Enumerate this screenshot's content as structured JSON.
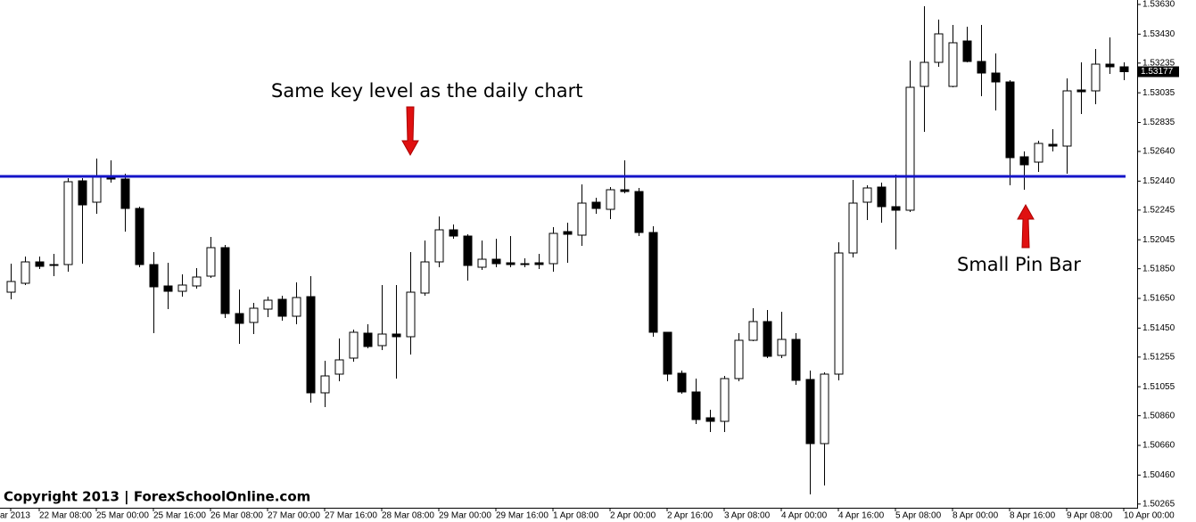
{
  "chart_data": {
    "type": "candlestick",
    "categories": [
      "ar 2013",
      null,
      "22 Mar 08:00",
      null,
      null,
      null,
      "25 Mar 00:00",
      null,
      null,
      null,
      "25 Mar 16:00",
      null,
      null,
      null,
      "26 Mar 08:00",
      null,
      null,
      null,
      "27 Mar 00:00",
      null,
      null,
      null,
      "27 Mar 16:00",
      null,
      null,
      null,
      "28 Mar 08:00",
      null,
      null,
      null,
      "29 Mar 00:00",
      null,
      null,
      null,
      "29 Mar 16:00",
      null,
      null,
      null,
      "1 Apr 08:00",
      null,
      null,
      null,
      "2 Apr 00:00",
      null,
      null,
      null,
      "2 Apr 16:00",
      null,
      null,
      null,
      "3 Apr 08:00",
      null,
      null,
      null,
      "4 Apr 00:00",
      null,
      null,
      null,
      "4 Apr 16:00",
      null,
      null,
      null,
      "5 Apr 08:00",
      null,
      null,
      null,
      "8 Apr 00:00",
      null,
      null,
      null,
      "8 Apr 16:00",
      null,
      null,
      null,
      "9 Apr 08:00",
      null,
      null,
      null,
      "10 Apr 00:00"
    ],
    "open": [
      1.51692,
      1.51752,
      1.51896,
      1.51878,
      1.51878,
      1.52442,
      1.52298,
      1.52478,
      1.52454,
      1.52256,
      1.51878,
      1.51734,
      1.51698,
      1.51734,
      1.518,
      1.51992,
      1.51548,
      1.51488,
      1.51578,
      1.51644,
      1.5153,
      1.51662,
      1.51014,
      1.5114,
      1.51248,
      1.51416,
      1.51332,
      1.5141,
      1.51392,
      1.51686,
      1.51896,
      1.52112,
      1.5207,
      1.5186,
      1.51914,
      1.5189,
      1.51884,
      1.5189,
      1.51884,
      1.521,
      1.52076,
      1.52298,
      1.5225,
      1.52382,
      1.5237,
      1.52094,
      1.51422,
      1.51146,
      1.5102,
      1.50846,
      1.50822,
      1.5111,
      1.51368,
      1.51494,
      1.51266,
      1.51374,
      1.51104,
      1.50672,
      1.5114,
      1.51956,
      1.52298,
      1.524,
      1.52268,
      1.52244,
      1.53078,
      1.5324,
      1.53078,
      1.53384,
      1.53246,
      1.53168,
      1.53108,
      1.52604,
      1.52568,
      1.52688,
      1.52676,
      1.53054,
      1.53048,
      1.53228,
      1.5321
    ],
    "high": [
      1.51884,
      1.51932,
      1.51932,
      1.5195,
      1.5246,
      1.5246,
      1.52592,
      1.5258,
      1.5249,
      1.52268,
      1.51962,
      1.5189,
      1.51812,
      1.51854,
      1.52064,
      1.5201,
      1.5171,
      1.5162,
      1.51662,
      1.51668,
      1.51758,
      1.518,
      1.5123,
      1.5138,
      1.5144,
      1.51476,
      1.5174,
      1.5174,
      1.51962,
      1.5204,
      1.52202,
      1.52148,
      1.52082,
      1.5204,
      1.52052,
      1.5207,
      1.5192,
      1.5195,
      1.5213,
      1.5216,
      1.52418,
      1.52328,
      1.524,
      1.5258,
      1.52394,
      1.52136,
      1.51422,
      1.51164,
      1.5111,
      1.509,
      1.51128,
      1.51416,
      1.51584,
      1.51572,
      1.5156,
      1.51416,
      1.51164,
      1.51152,
      1.52028,
      1.52448,
      1.52412,
      1.5243,
      1.52484,
      1.53252,
      1.53618,
      1.53528,
      1.53492,
      1.5348,
      1.53492,
      1.533,
      1.5312,
      1.5264,
      1.52712,
      1.5279,
      1.53132,
      1.5324,
      1.5333,
      1.53408,
      1.5324
    ],
    "low": [
      1.51644,
      1.5174,
      1.51848,
      1.518,
      1.5183,
      1.51884,
      1.5222,
      1.5243,
      1.521,
      1.5186,
      1.51416,
      1.51578,
      1.51662,
      1.51716,
      1.51788,
      1.51518,
      1.51344,
      1.5141,
      1.51524,
      1.515,
      1.51476,
      1.50948,
      1.50918,
      1.51092,
      1.51224,
      1.51314,
      1.51302,
      1.5111,
      1.51272,
      1.51668,
      1.5186,
      1.52052,
      1.5177,
      1.51842,
      1.5186,
      1.5186,
      1.5186,
      1.51848,
      1.5183,
      1.5189,
      1.52004,
      1.5222,
      1.52184,
      1.52358,
      1.5207,
      1.51392,
      1.51092,
      1.51008,
      1.50804,
      1.5075,
      1.5075,
      1.51092,
      1.51362,
      1.51248,
      1.51248,
      1.51068,
      1.5033,
      1.5039,
      1.51098,
      1.51926,
      1.52178,
      1.5216,
      1.5198,
      1.52232,
      1.52772,
      1.5321,
      1.53072,
      1.5324,
      1.53012,
      1.52916,
      1.52412,
      1.52382,
      1.52502,
      1.5264,
      1.5249,
      1.52892,
      1.52958,
      1.53162,
      1.5312
    ],
    "close": [
      1.51764,
      1.51896,
      1.51866,
      1.51872,
      1.52436,
      1.5228,
      1.52478,
      1.52454,
      1.52256,
      1.51878,
      1.51728,
      1.51698,
      1.5174,
      1.51794,
      1.51992,
      1.51548,
      1.51482,
      1.51584,
      1.51638,
      1.5153,
      1.51656,
      1.51014,
      1.51128,
      1.51236,
      1.51422,
      1.51326,
      1.5141,
      1.51392,
      1.51692,
      1.51896,
      1.52112,
      1.5207,
      1.51872,
      1.51914,
      1.51884,
      1.51878,
      1.51878,
      1.51878,
      1.52088,
      1.52082,
      1.52292,
      1.52256,
      1.52382,
      1.5237,
      1.52094,
      1.51422,
      1.5114,
      1.5102,
      1.50834,
      1.50822,
      1.5111,
      1.51368,
      1.51494,
      1.5126,
      1.51374,
      1.51098,
      1.50672,
      1.5114,
      1.51956,
      1.52292,
      1.52394,
      1.52268,
      1.52244,
      1.53072,
      1.5324,
      1.53432,
      1.53372,
      1.53246,
      1.53168,
      1.53108,
      1.52598,
      1.5255,
      1.52694,
      1.52676,
      1.53048,
      1.53042,
      1.53228,
      1.5321,
      1.53177
    ],
    "ylim": [
      1.5024,
      1.5366
    ],
    "yticks": [
      {
        "value": 1.5363,
        "label": "1.53630"
      },
      {
        "value": 1.5343,
        "label": "1.53430"
      },
      {
        "value": 1.53235,
        "label": "1.53235"
      },
      {
        "value": 1.53035,
        "label": "1.53035"
      },
      {
        "value": 1.52835,
        "label": "1.52835"
      },
      {
        "value": 1.5264,
        "label": "1.52640"
      },
      {
        "value": 1.5244,
        "label": "1.52440"
      },
      {
        "value": 1.52245,
        "label": "1.52245"
      },
      {
        "value": 1.52045,
        "label": "1.52045"
      },
      {
        "value": 1.5185,
        "label": "1.51850"
      },
      {
        "value": 1.5165,
        "label": "1.51650"
      },
      {
        "value": 1.5145,
        "label": "1.51450"
      },
      {
        "value": 1.51255,
        "label": "1.51255"
      },
      {
        "value": 1.51055,
        "label": "1.51055"
      },
      {
        "value": 1.5086,
        "label": "1.50860"
      },
      {
        "value": 1.5066,
        "label": "1.50660"
      },
      {
        "value": 1.5046,
        "label": "1.50460"
      },
      {
        "value": 1.50265,
        "label": "1.50265"
      }
    ],
    "up_color": "#ffffff",
    "down_color": "#000000",
    "key_level": {
      "value": 1.52472,
      "color": "#1414c8"
    },
    "annotations": [
      "Same key level as the daily chart",
      "Small Pin Bar"
    ],
    "copyright": "Copyright 2013 | ForexSchoolOnline.com"
  }
}
